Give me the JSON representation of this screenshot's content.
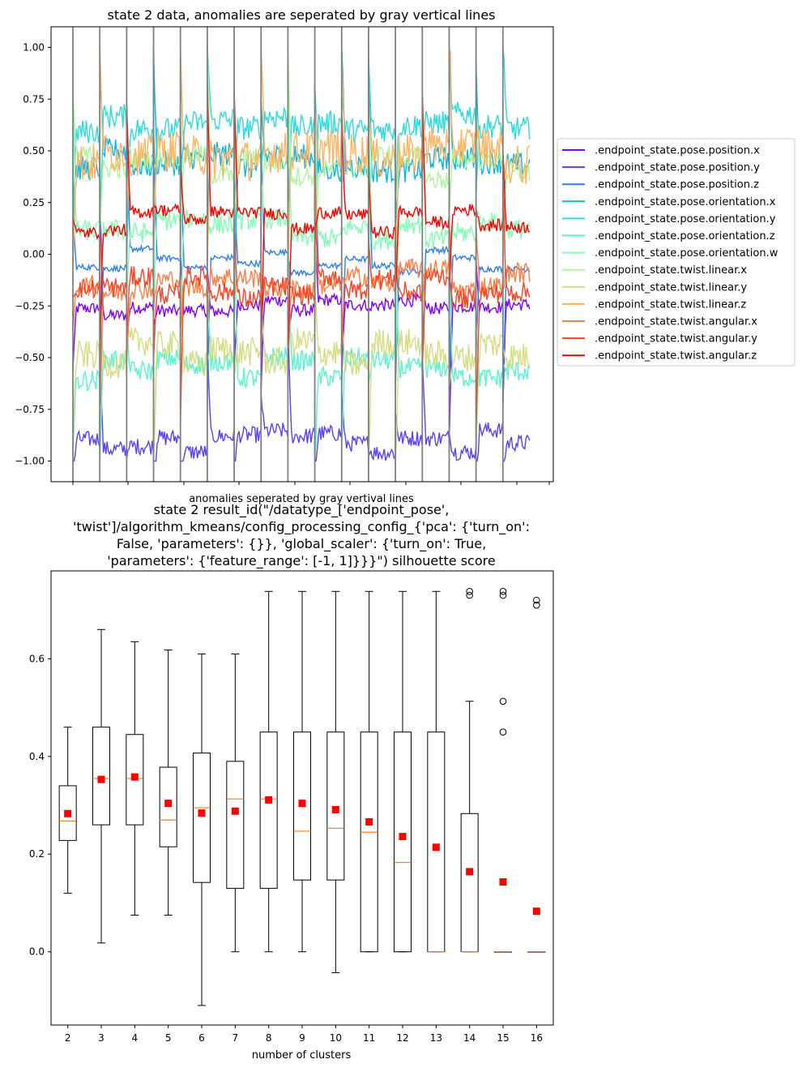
{
  "chart_data": [
    {
      "type": "line",
      "title": "state 2 data, anomalies are seperated by gray vertical lines",
      "xlabel": "anomalies seperated by gray vertival lines",
      "ylabel": "",
      "ylim": [
        -1.1,
        1.1
      ],
      "yticks": [
        "−1.00",
        "−0.75",
        "−0.50",
        "−0.25",
        "0.00",
        "0.25",
        "0.50",
        "0.75",
        "1.00"
      ],
      "ytick_values": [
        -1.0,
        -0.75,
        -0.5,
        -0.25,
        0.0,
        0.25,
        0.5,
        0.75,
        1.0
      ],
      "grid": false,
      "legend_placement": "right-outside",
      "vline_color": "#808080",
      "anomaly_segments": 17,
      "series": [
        {
          "name": ".endpoint_state.pose.position.x",
          "color": "#8000ff",
          "level": -0.28,
          "noise": 0.03
        },
        {
          "name": ".endpoint_state.pose.position.y",
          "color": "#5641fd",
          "level": -0.9,
          "noise": 0.04
        },
        {
          "name": ".endpoint_state.pose.position.z",
          "color": "#2c7ef7",
          "level": -0.03,
          "noise": 0.015
        },
        {
          "name": ".endpoint_state.pose.orientation.x",
          "color": "#02b7eb",
          "level": 0.45,
          "noise": 0.06
        },
        {
          "name": ".endpoint_state.pose.orientation.y",
          "color": "#2adddd",
          "level": 0.62,
          "noise": 0.06
        },
        {
          "name": ".endpoint_state.pose.orientation.z",
          "color": "#54f6cb",
          "level": -0.55,
          "noise": 0.05
        },
        {
          "name": ".endpoint_state.pose.orientation.w",
          "color": "#80ffb4",
          "level": 0.12,
          "noise": 0.05
        },
        {
          "name": ".endpoint_state.twist.linear.x",
          "color": "#acf69b",
          "level": 0.42,
          "noise": 0.05
        },
        {
          "name": ".endpoint_state.twist.linear.y",
          "color": "#d4dd80",
          "level": -0.48,
          "noise": 0.07
        },
        {
          "name": ".endpoint_state.twist.linear.z",
          "color": "#ffb360",
          "level": 0.48,
          "noise": 0.1
        },
        {
          "name": ".endpoint_state.twist.angular.x",
          "color": "#ff7e41",
          "level": -0.13,
          "noise": 0.05
        },
        {
          "name": ".endpoint_state.twist.angular.y",
          "color": "#ff4121",
          "level": -0.16,
          "noise": 0.05
        },
        {
          "name": ".endpoint_state.twist.angular.z",
          "color": "#ff0000",
          "level": 0.16,
          "noise": 0.03
        }
      ]
    },
    {
      "type": "box",
      "title_lines": [
        "state 2 result_id(\"/datatype_['endpoint_pose',",
        "'twist']/algorithm_kmeans/config_processing_config_{'pca': {'turn_on':",
        "False, 'parameters': {}}, 'global_scaler': {'turn_on': True,",
        "'parameters': {'feature_range': [-1, 1]}}}\") silhouette score"
      ],
      "xlabel": "number of clusters",
      "ylabel": "",
      "ylim": [
        -0.15,
        0.78
      ],
      "yticks": [
        "0.0",
        "0.2",
        "0.4",
        "0.6"
      ],
      "ytick_values": [
        0.0,
        0.2,
        0.4,
        0.6
      ],
      "grid": false,
      "box_color": "#000000",
      "median_color": "#ff7f0e",
      "mean_color": "#ff0000",
      "categories": [
        "2",
        "3",
        "4",
        "5",
        "6",
        "7",
        "8",
        "9",
        "10",
        "11",
        "12",
        "13",
        "14",
        "15",
        "16"
      ],
      "boxes": [
        {
          "whislo": 0.12,
          "q1": 0.228,
          "med": 0.268,
          "q3": 0.34,
          "whishi": 0.46,
          "mean": 0.283,
          "fliers": []
        },
        {
          "whislo": 0.018,
          "q1": 0.26,
          "med": 0.355,
          "q3": 0.46,
          "whishi": 0.66,
          "mean": 0.353,
          "fliers": []
        },
        {
          "whislo": 0.075,
          "q1": 0.26,
          "med": 0.355,
          "q3": 0.445,
          "whishi": 0.635,
          "mean": 0.358,
          "fliers": []
        },
        {
          "whislo": 0.075,
          "q1": 0.215,
          "med": 0.27,
          "q3": 0.378,
          "whishi": 0.618,
          "mean": 0.304,
          "fliers": []
        },
        {
          "whislo": -0.11,
          "q1": 0.142,
          "med": 0.295,
          "q3": 0.407,
          "whishi": 0.61,
          "mean": 0.284,
          "fliers": []
        },
        {
          "whislo": 0.0,
          "q1": 0.13,
          "med": 0.313,
          "q3": 0.39,
          "whishi": 0.61,
          "mean": 0.288,
          "fliers": []
        },
        {
          "whislo": 0.0,
          "q1": 0.13,
          "med": 0.313,
          "q3": 0.45,
          "whishi": 0.738,
          "mean": 0.311,
          "fliers": []
        },
        {
          "whislo": 0.0,
          "q1": 0.147,
          "med": 0.247,
          "q3": 0.45,
          "whishi": 0.738,
          "mean": 0.304,
          "fliers": []
        },
        {
          "whislo": -0.043,
          "q1": 0.147,
          "med": 0.253,
          "q3": 0.45,
          "whishi": 0.738,
          "mean": 0.291,
          "fliers": []
        },
        {
          "whislo": 0.0,
          "q1": 0.0,
          "med": 0.245,
          "q3": 0.45,
          "whishi": 0.738,
          "mean": 0.266,
          "fliers": []
        },
        {
          "whislo": 0.0,
          "q1": 0.0,
          "med": 0.183,
          "q3": 0.45,
          "whishi": 0.738,
          "mean": 0.236,
          "fliers": []
        },
        {
          "whislo": 0.0,
          "q1": 0.0,
          "med": 0.0,
          "q3": 0.45,
          "whishi": 0.738,
          "mean": 0.214,
          "fliers": []
        },
        {
          "whislo": 0.0,
          "q1": 0.0,
          "med": 0.0,
          "q3": 0.283,
          "whishi": 0.513,
          "mean": 0.164,
          "fliers": [
            0.73,
            0.738
          ]
        },
        {
          "whislo": 0.0,
          "q1": 0.0,
          "med": 0.0,
          "q3": 0.0,
          "whishi": 0.0,
          "mean": 0.143,
          "fliers": [
            0.45,
            0.513,
            0.73,
            0.738
          ]
        },
        {
          "whislo": 0.0,
          "q1": 0.0,
          "med": 0.0,
          "q3": 0.0,
          "whishi": 0.0,
          "mean": 0.083,
          "fliers": [
            0.71,
            0.72
          ]
        }
      ]
    }
  ]
}
